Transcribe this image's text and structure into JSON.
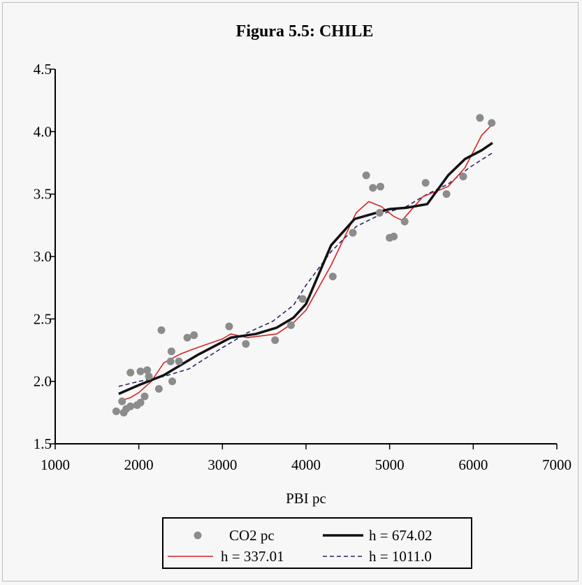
{
  "chart_data": {
    "type": "scatter",
    "title": "Figura 5.5: CHILE",
    "xlabel": "PBI pc",
    "ylabel": "",
    "xlim": [
      1000,
      7000
    ],
    "ylim": [
      1.5,
      4.5
    ],
    "xticks": [
      1000,
      2000,
      3000,
      4000,
      5000,
      6000,
      7000
    ],
    "yticks": [
      1.5,
      2.0,
      2.5,
      3.0,
      3.5,
      4.0,
      4.5
    ],
    "xtick_labels": [
      "1000",
      "2000",
      "3000",
      "4000",
      "5000",
      "6000",
      "7000"
    ],
    "ytick_labels": [
      "1.5",
      "2.0",
      "2.5",
      "3.0",
      "3.5",
      "4.0",
      "4.5"
    ],
    "grid": false,
    "legend_position": "bottom",
    "series": [
      {
        "name": "CO2 pc",
        "kind": "scatter",
        "color": "#8c8c8c",
        "points": [
          [
            1730,
            1.76
          ],
          [
            1800,
            1.84
          ],
          [
            1820,
            1.75
          ],
          [
            1850,
            1.78
          ],
          [
            1900,
            1.8
          ],
          [
            1900,
            2.07
          ],
          [
            1980,
            1.81
          ],
          [
            2020,
            1.83
          ],
          [
            2020,
            2.08
          ],
          [
            2070,
            1.88
          ],
          [
            2100,
            2.09
          ],
          [
            2120,
            2.04
          ],
          [
            2240,
            1.94
          ],
          [
            2270,
            2.41
          ],
          [
            2380,
            2.16
          ],
          [
            2390,
            2.24
          ],
          [
            2400,
            2.0
          ],
          [
            2480,
            2.16
          ],
          [
            2580,
            2.35
          ],
          [
            2660,
            2.37
          ],
          [
            3080,
            2.44
          ],
          [
            3280,
            2.3
          ],
          [
            3630,
            2.33
          ],
          [
            3820,
            2.45
          ],
          [
            3960,
            2.66
          ],
          [
            4320,
            2.84
          ],
          [
            4560,
            3.19
          ],
          [
            4720,
            3.65
          ],
          [
            4800,
            3.55
          ],
          [
            4880,
            3.35
          ],
          [
            4890,
            3.56
          ],
          [
            5000,
            3.15
          ],
          [
            5050,
            3.16
          ],
          [
            5180,
            3.28
          ],
          [
            5430,
            3.59
          ],
          [
            5680,
            3.5
          ],
          [
            5880,
            3.64
          ],
          [
            6080,
            4.11
          ],
          [
            6220,
            4.07
          ]
        ]
      },
      {
        "name": "h = 674.02",
        "kind": "line",
        "color": "#111111",
        "stroke": "solid-thick",
        "points": [
          [
            1760,
            1.9
          ],
          [
            2000,
            1.97
          ],
          [
            2300,
            2.05
          ],
          [
            2700,
            2.21
          ],
          [
            3100,
            2.35
          ],
          [
            3400,
            2.38
          ],
          [
            3650,
            2.43
          ],
          [
            3850,
            2.51
          ],
          [
            4000,
            2.62
          ],
          [
            4300,
            3.09
          ],
          [
            4580,
            3.3
          ],
          [
            5000,
            3.38
          ],
          [
            5200,
            3.39
          ],
          [
            5450,
            3.42
          ],
          [
            5700,
            3.65
          ],
          [
            5900,
            3.78
          ],
          [
            6100,
            3.85
          ],
          [
            6230,
            3.91
          ]
        ]
      },
      {
        "name": "h = 337.01",
        "kind": "line",
        "color": "#d62424",
        "stroke": "solid-thin",
        "points": [
          [
            1760,
            1.84
          ],
          [
            1900,
            1.87
          ],
          [
            2000,
            1.91
          ],
          [
            2150,
            2.0
          ],
          [
            2300,
            2.15
          ],
          [
            2500,
            2.22
          ],
          [
            2700,
            2.27
          ],
          [
            3000,
            2.34
          ],
          [
            3100,
            2.38
          ],
          [
            3300,
            2.35
          ],
          [
            3650,
            2.38
          ],
          [
            3850,
            2.47
          ],
          [
            4000,
            2.57
          ],
          [
            4300,
            2.93
          ],
          [
            4600,
            3.35
          ],
          [
            4750,
            3.44
          ],
          [
            4900,
            3.4
          ],
          [
            5050,
            3.32
          ],
          [
            5150,
            3.29
          ],
          [
            5400,
            3.48
          ],
          [
            5700,
            3.56
          ],
          [
            5900,
            3.71
          ],
          [
            6100,
            3.97
          ],
          [
            6230,
            4.06
          ]
        ]
      },
      {
        "name": "h = 1011.0",
        "kind": "line",
        "color": "#27276b",
        "stroke": "dashed",
        "points": [
          [
            1760,
            1.96
          ],
          [
            2000,
            2.0
          ],
          [
            2300,
            2.04
          ],
          [
            2600,
            2.1
          ],
          [
            3000,
            2.27
          ],
          [
            3300,
            2.39
          ],
          [
            3600,
            2.48
          ],
          [
            3850,
            2.61
          ],
          [
            4000,
            2.77
          ],
          [
            4300,
            3.04
          ],
          [
            4600,
            3.24
          ],
          [
            4900,
            3.34
          ],
          [
            5200,
            3.4
          ],
          [
            5450,
            3.5
          ],
          [
            5700,
            3.58
          ],
          [
            5950,
            3.71
          ],
          [
            6230,
            3.83
          ]
        ]
      }
    ]
  }
}
